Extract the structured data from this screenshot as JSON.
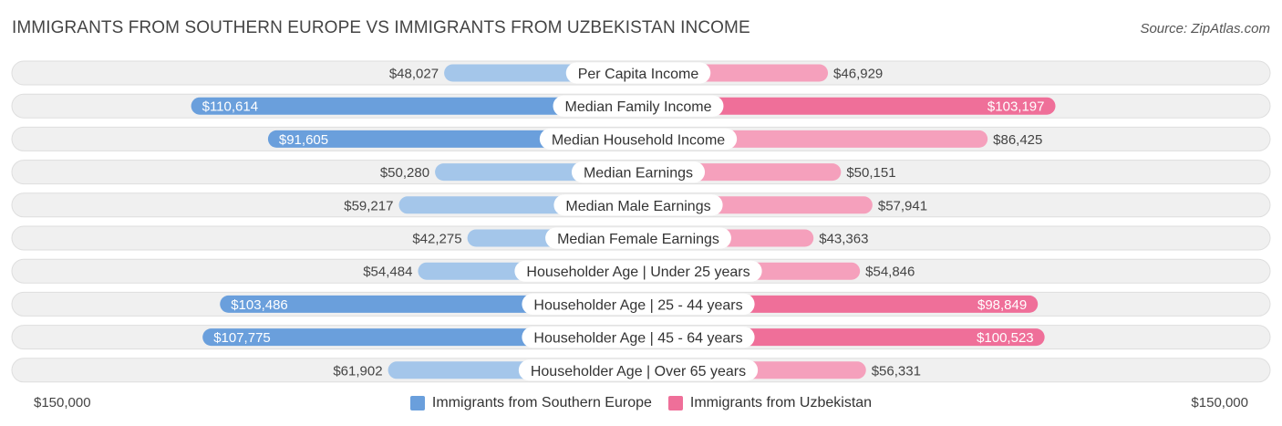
{
  "title": "IMMIGRANTS FROM SOUTHERN EUROPE VS IMMIGRANTS FROM UZBEKISTAN INCOME",
  "source": "Source: ZipAtlas.com",
  "colors": {
    "left_light": "#a4c6ea",
    "left_strong": "#6a9fdc",
    "right_light": "#f5a0bc",
    "right_strong": "#ef6f99",
    "row_bg": "#f0f0f0",
    "row_border": "#dedede"
  },
  "chart_data": {
    "type": "bar",
    "orientation": "horizontal-diverging",
    "categories": [
      "Per Capita Income",
      "Median Family Income",
      "Median Household Income",
      "Median Earnings",
      "Median Male Earnings",
      "Median Female Earnings",
      "Householder Age | Under 25 years",
      "Householder Age | 25 - 44 years",
      "Householder Age | 45 - 64 years",
      "Householder Age | Over 65 years"
    ],
    "series": [
      {
        "name": "Immigrants from Southern Europe",
        "values": [
          48027,
          110614,
          91605,
          50280,
          59217,
          42275,
          54484,
          103486,
          107775,
          61902
        ],
        "labels": [
          "$48,027",
          "$110,614",
          "$91,605",
          "$50,280",
          "$59,217",
          "$42,275",
          "$54,484",
          "$103,486",
          "$107,775",
          "$61,902"
        ]
      },
      {
        "name": "Immigrants from Uzbekistan",
        "values": [
          46929,
          103197,
          86425,
          50151,
          57941,
          43363,
          54846,
          98849,
          100523,
          56331
        ],
        "labels": [
          "$46,929",
          "$103,197",
          "$86,425",
          "$50,151",
          "$57,941",
          "$43,363",
          "$54,846",
          "$98,849",
          "$100,523",
          "$56,331"
        ]
      }
    ],
    "xlim": [
      0,
      150000
    ],
    "axis_min_label": "$150,000",
    "axis_max_label": "$150,000",
    "legend_position": "bottom"
  }
}
